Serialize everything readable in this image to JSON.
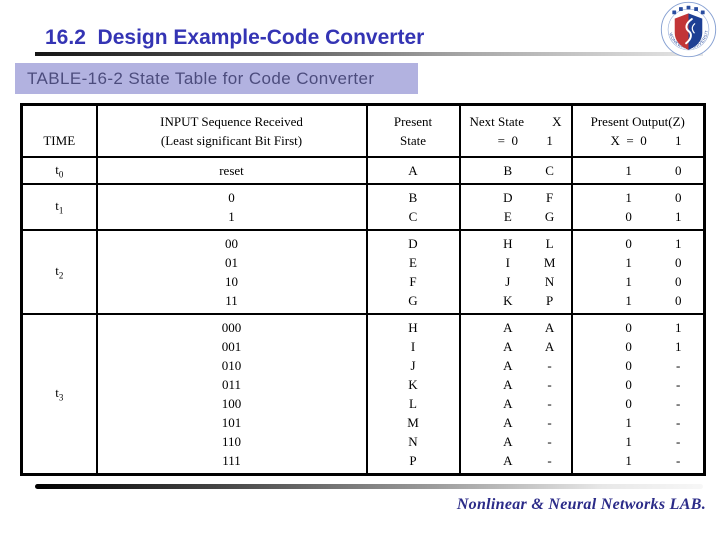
{
  "slide": {
    "title": "16.2  Design Example-Code Converter",
    "banner": "TABLE-16-2 State Table for Code Converter",
    "footer": "Nonlinear & Neural Networks LAB.",
    "logo_ring_text": "WONKWANG UNIVERSITY"
  },
  "colors": {
    "title_text": "#3434b4",
    "banner_bg": "#b2b2e0",
    "banner_text": "#4c4c7d",
    "footer_text": "#2b2b88",
    "emblem_red": "#c23537",
    "emblem_blue": "#1d3f94",
    "table_border": "#000000"
  },
  "table": {
    "header": {
      "time": "TIME",
      "input": [
        "INPUT Sequence Received",
        "(Least significant Bit First)"
      ],
      "present_state": [
        "Present",
        "State"
      ],
      "next_state": {
        "left": "Next State",
        "x": "X",
        "eq_zero": "=  0",
        "one": "1"
      },
      "present_output": {
        "line1": "Present Output(Z)",
        "x_eq_zero": "X  =  0",
        "one": "1"
      }
    },
    "groups": [
      {
        "time_base": "t",
        "time_sub": "0",
        "rows": [
          {
            "input": "reset",
            "present": "A",
            "next0": "B",
            "next1": "C",
            "z0": "1",
            "z1": "0"
          }
        ]
      },
      {
        "time_base": "t",
        "time_sub": "1",
        "rows": [
          {
            "input": "0",
            "present": "B",
            "next0": "D",
            "next1": "F",
            "z0": "1",
            "z1": "0"
          },
          {
            "input": "1",
            "present": "C",
            "next0": "E",
            "next1": "G",
            "z0": "0",
            "z1": "1"
          }
        ]
      },
      {
        "time_base": "t",
        "time_sub": "2",
        "rows": [
          {
            "input": "00",
            "present": "D",
            "next0": "H",
            "next1": "L",
            "z0": "0",
            "z1": "1"
          },
          {
            "input": "01",
            "present": "E",
            "next0": "I",
            "next1": "M",
            "z0": "1",
            "z1": "0"
          },
          {
            "input": "10",
            "present": "F",
            "next0": "J",
            "next1": "N",
            "z0": "1",
            "z1": "0"
          },
          {
            "input": "11",
            "present": "G",
            "next0": "K",
            "next1": "P",
            "z0": "1",
            "z1": "0"
          }
        ]
      },
      {
        "time_base": "t",
        "time_sub": "3",
        "rows": [
          {
            "input": "000",
            "present": "H",
            "next0": "A",
            "next1": "A",
            "z0": "0",
            "z1": "1"
          },
          {
            "input": "001",
            "present": "I",
            "next0": "A",
            "next1": "A",
            "z0": "0",
            "z1": "1"
          },
          {
            "input": "010",
            "present": "J",
            "next0": "A",
            "next1": "-",
            "z0": "0",
            "z1": "-"
          },
          {
            "input": "011",
            "present": "K",
            "next0": "A",
            "next1": "-",
            "z0": "0",
            "z1": "-"
          },
          {
            "input": "100",
            "present": "L",
            "next0": "A",
            "next1": "-",
            "z0": "0",
            "z1": "-"
          },
          {
            "input": "101",
            "present": "M",
            "next0": "A",
            "next1": "-",
            "z0": "1",
            "z1": "-"
          },
          {
            "input": "110",
            "present": "N",
            "next0": "A",
            "next1": "-",
            "z0": "1",
            "z1": "-"
          },
          {
            "input": "111",
            "present": "P",
            "next0": "A",
            "next1": "-",
            "z0": "1",
            "z1": "-"
          }
        ]
      }
    ]
  }
}
